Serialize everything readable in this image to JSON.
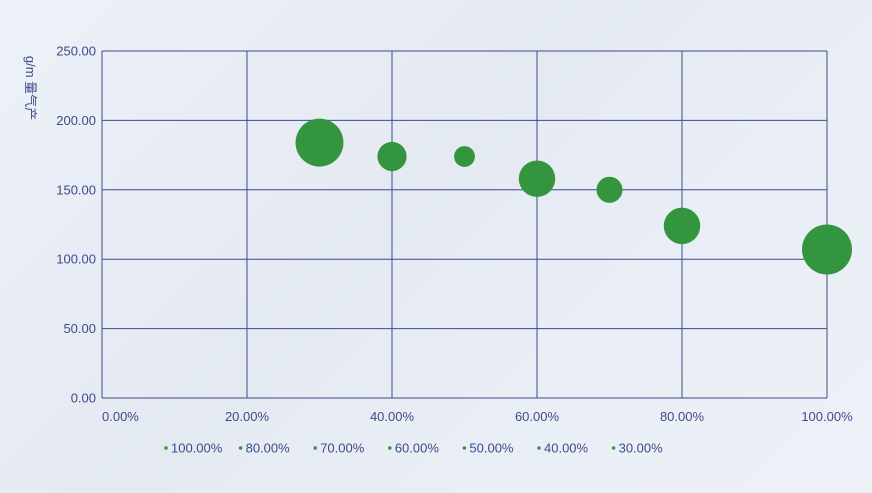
{
  "chart_data": {
    "type": "scatter",
    "title": "",
    "xlabel": "",
    "ylabel": "g/m 量气产",
    "xlim": [
      0,
      1
    ],
    "ylim": [
      0,
      250
    ],
    "x_ticks": [
      "0.00%",
      "20.00%",
      "40.00%",
      "60.00%",
      "80.00%",
      "100.00%"
    ],
    "y_ticks": [
      "0.00",
      "50.00",
      "100.00",
      "150.00",
      "200.00",
      "250.00"
    ],
    "grid": true,
    "legend_position": "bottom",
    "marker_color": "#33963f",
    "grid_color": "#3f4a8a",
    "points": [
      {
        "x": 0.3,
        "y": 184,
        "size": 0.46
      },
      {
        "x": 0.4,
        "y": 174,
        "size": 0.28
      },
      {
        "x": 0.5,
        "y": 174,
        "size": 0.2
      },
      {
        "x": 0.6,
        "y": 158,
        "size": 0.35
      },
      {
        "x": 0.7,
        "y": 150,
        "size": 0.25
      },
      {
        "x": 0.8,
        "y": 124,
        "size": 0.35
      },
      {
        "x": 1.0,
        "y": 107,
        "size": 0.48
      }
    ],
    "legend": [
      "100.00%",
      "80.00%",
      "70.00%",
      "60.00%",
      "50.00%",
      "40.00%",
      "30.00%"
    ]
  }
}
